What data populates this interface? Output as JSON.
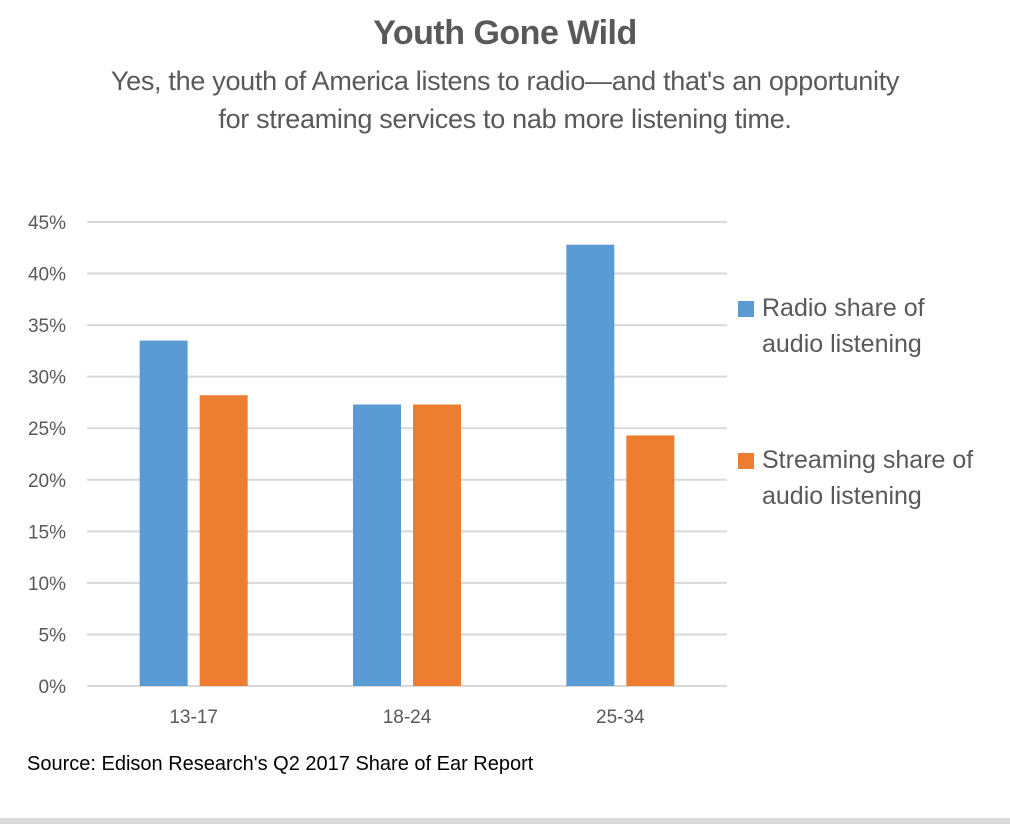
{
  "chart_data": {
    "type": "bar",
    "title": "Youth Gone Wild",
    "subtitle": "Yes, the youth of America listens to radio—and that's an opportunity for streaming services to nab more listening time.",
    "categories": [
      "13-17",
      "18-24",
      "25-34"
    ],
    "series": [
      {
        "name": "Radio share of audio listening",
        "color": "#5B9BD5",
        "values": [
          33.5,
          27.3,
          42.8
        ]
      },
      {
        "name": "Streaming share of audio listening",
        "color": "#ED7D31",
        "values": [
          28.2,
          27.3,
          24.3
        ]
      }
    ],
    "yticks": [
      "0%",
      "5%",
      "10%",
      "15%",
      "20%",
      "25%",
      "30%",
      "35%",
      "40%",
      "45%"
    ],
    "ylim": [
      0,
      45
    ],
    "ystep": 5,
    "xlabel": "",
    "ylabel": "",
    "grid": true,
    "legend_position": "right",
    "legend_lines": [
      [
        "Radio share of",
        "audio listening"
      ],
      [
        "Streaming share of",
        "audio listening"
      ]
    ],
    "source": "Source: Edison Research's Q2 2017 Share of Ear Report"
  }
}
